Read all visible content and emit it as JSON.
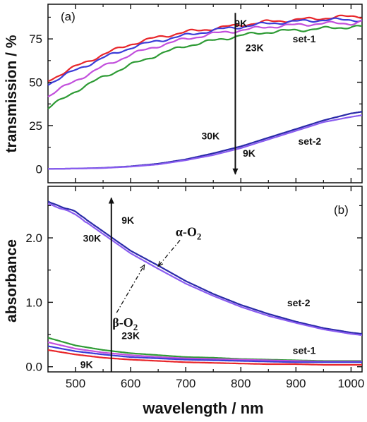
{
  "chart_data": [
    {
      "type": "line",
      "panel_label": "(a)",
      "ylabel": "transmission / %",
      "xlim": [
        450,
        1020
      ],
      "ylim": [
        -8,
        95
      ],
      "yticks": [
        0,
        25,
        50,
        75
      ],
      "x": [
        450,
        500,
        550,
        600,
        650,
        700,
        750,
        800,
        850,
        900,
        950,
        1000,
        1020
      ],
      "series": [
        {
          "color": "#e8262a",
          "group": "set-1",
          "values": [
            51,
            59,
            66,
            72,
            76,
            79,
            81,
            83,
            85,
            86,
            87,
            88,
            88
          ]
        },
        {
          "color": "#3c3cd8",
          "group": "set-1",
          "values": [
            49,
            57,
            64,
            70,
            74,
            77,
            80,
            82,
            84,
            85,
            86,
            86,
            86
          ]
        },
        {
          "color": "#c24fdc",
          "group": "set-1",
          "values": [
            42,
            51,
            59,
            66,
            71,
            75,
            78,
            80,
            82,
            83,
            84,
            84,
            85
          ]
        },
        {
          "color": "#2e9b35",
          "group": "set-1",
          "values": [
            35,
            45,
            53,
            60,
            66,
            71,
            74,
            77,
            79,
            80,
            81,
            82,
            82
          ]
        },
        {
          "color": "#2a2aa8",
          "group": "set-2",
          "values": [
            0,
            0.2,
            0.6,
            1.5,
            3,
            5.5,
            9,
            13,
            18,
            23,
            28,
            32,
            33
          ]
        },
        {
          "color": "#8a5cf0",
          "group": "set-2",
          "values": [
            0,
            0.2,
            0.5,
            1.3,
            2.6,
            5,
            8,
            12,
            17,
            22,
            27,
            30,
            31
          ]
        }
      ],
      "annotations": [
        {
          "text": "9K",
          "x": 800,
          "y": 82
        },
        {
          "text": "23K",
          "x": 825,
          "y": 68
        },
        {
          "text": "set-1",
          "x": 915,
          "y": 73
        },
        {
          "text": "30K",
          "x": 745,
          "y": 17
        },
        {
          "text": "9K",
          "x": 815,
          "y": 7
        },
        {
          "text": "set-2",
          "x": 925,
          "y": 14
        }
      ],
      "arrow": {
        "x": 790,
        "from_y": 90,
        "to_y": -3
      }
    },
    {
      "type": "line",
      "panel_label": "(b)",
      "ylabel": "absorbance",
      "xlabel": "wavelength / nm",
      "xlim": [
        450,
        1020
      ],
      "ylim": [
        -0.08,
        2.8
      ],
      "yticks": [
        0.0,
        1.0,
        2.0
      ],
      "xticks": [
        500,
        600,
        700,
        800,
        900,
        1000
      ],
      "x": [
        450,
        500,
        550,
        600,
        650,
        700,
        750,
        800,
        850,
        900,
        950,
        1000,
        1020
      ],
      "series": [
        {
          "color": "#2a2aa8",
          "group": "set-2",
          "label": "α-O2",
          "values": [
            2.57,
            2.4,
            2.1,
            1.8,
            1.57,
            1.33,
            1.13,
            0.96,
            0.82,
            0.7,
            0.6,
            0.53,
            0.51
          ]
        },
        {
          "color": "#8a5cf0",
          "group": "set-2",
          "label": "β-O2",
          "values": [
            2.54,
            2.36,
            2.06,
            1.76,
            1.52,
            1.29,
            1.1,
            0.93,
            0.79,
            0.68,
            0.58,
            0.51,
            0.49
          ]
        },
        {
          "color": "#2e9b35",
          "group": "set-1",
          "values": [
            0.45,
            0.33,
            0.26,
            0.21,
            0.18,
            0.15,
            0.14,
            0.12,
            0.11,
            0.1,
            0.09,
            0.09,
            0.09
          ]
        },
        {
          "color": "#c24fdc",
          "group": "set-1",
          "values": [
            0.38,
            0.28,
            0.22,
            0.18,
            0.15,
            0.13,
            0.12,
            0.11,
            0.1,
            0.09,
            0.08,
            0.08,
            0.08
          ]
        },
        {
          "color": "#3c3cd8",
          "group": "set-1",
          "values": [
            0.32,
            0.24,
            0.19,
            0.15,
            0.13,
            0.11,
            0.1,
            0.09,
            0.08,
            0.07,
            0.07,
            0.07,
            0.07
          ]
        },
        {
          "color": "#e8262a",
          "group": "set-1",
          "values": [
            0.26,
            0.19,
            0.14,
            0.11,
            0.09,
            0.07,
            0.06,
            0.05,
            0.04,
            0.04,
            0.03,
            0.03,
            0.03
          ]
        }
      ],
      "annotations": [
        {
          "text": "9K",
          "x": 595,
          "y": 2.22
        },
        {
          "text": "30K",
          "x": 530,
          "y": 1.94
        },
        {
          "text": "set-2",
          "x": 905,
          "y": 0.94
        },
        {
          "text": "23K",
          "x": 600,
          "y": 0.43
        },
        {
          "text": "set-1",
          "x": 915,
          "y": 0.2
        },
        {
          "text": "9K",
          "x": 520,
          "y": -0.02
        }
      ],
      "greek_labels": [
        {
          "base": "α-O",
          "sub": "2",
          "x": 705,
          "y": 2.03,
          "arrow_to": [
            650,
            1.56
          ]
        },
        {
          "base": "β-O",
          "sub": "2",
          "x": 590,
          "y": 0.62,
          "arrow_to": [
            625,
            1.58
          ]
        }
      ],
      "arrow": {
        "x": 565,
        "from_y": -0.08,
        "to_y": 2.62
      }
    }
  ]
}
